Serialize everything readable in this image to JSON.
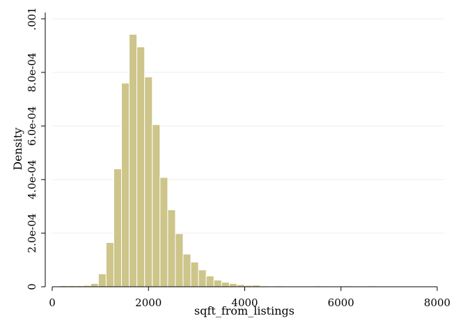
{
  "chart_data": {
    "type": "bar",
    "subtype": "histogram",
    "title": "",
    "xlabel": "sqft_from_listings",
    "ylabel": "Density",
    "xlim": [
      0,
      8000
    ],
    "ylim": [
      0,
      0.001
    ],
    "x_ticks": [
      0,
      2000,
      4000,
      6000,
      8000
    ],
    "x_tick_labels": [
      "0",
      "2000",
      "4000",
      "6000",
      "8000"
    ],
    "y_ticks": [
      0,
      0.0002,
      0.0004,
      0.0006,
      0.0008,
      0.001
    ],
    "y_tick_labels": [
      "0",
      "2.0e-04",
      "4.0e-04",
      "6.0e-04",
      "8.0e-04",
      ".001"
    ],
    "grid": "horizontal",
    "bin_width": 160,
    "bins_start": [
      160,
      320,
      480,
      640,
      800,
      960,
      1120,
      1280,
      1440,
      1600,
      1760,
      1920,
      2080,
      2240,
      2400,
      2560,
      2720,
      2880,
      3040,
      3200,
      3360,
      3520,
      3680,
      3840,
      4000,
      4160,
      4320,
      4480,
      4640,
      4800,
      4960,
      5120,
      5280,
      5440,
      5600,
      5760,
      5920,
      6080,
      6240,
      6400,
      6560
    ],
    "values": [
      4e-06,
      4e-06,
      4e-06,
      5e-06,
      1.2e-05,
      4.8e-05,
      0.000165,
      0.00044,
      0.00076,
      0.000942,
      0.000895,
      0.000783,
      0.000605,
      0.000408,
      0.000287,
      0.000198,
      0.000122,
      9.2e-05,
      6.3e-05,
      4e-05,
      2.5e-05,
      1.7e-05,
      1.2e-05,
      8e-06,
      5e-06,
      6e-06,
      3e-06,
      2e-06,
      3e-06,
      2e-06,
      1e-06,
      1e-06,
      2e-06,
      3e-06,
      2e-06,
      1e-06,
      1e-06,
      3e-06,
      1e-06,
      1e-06,
      3e-06
    ],
    "colors": {
      "bar_fill": "#cdc58a",
      "bar_stroke": "#ffffff",
      "axis": "#000000",
      "grid": "#ececec"
    }
  }
}
